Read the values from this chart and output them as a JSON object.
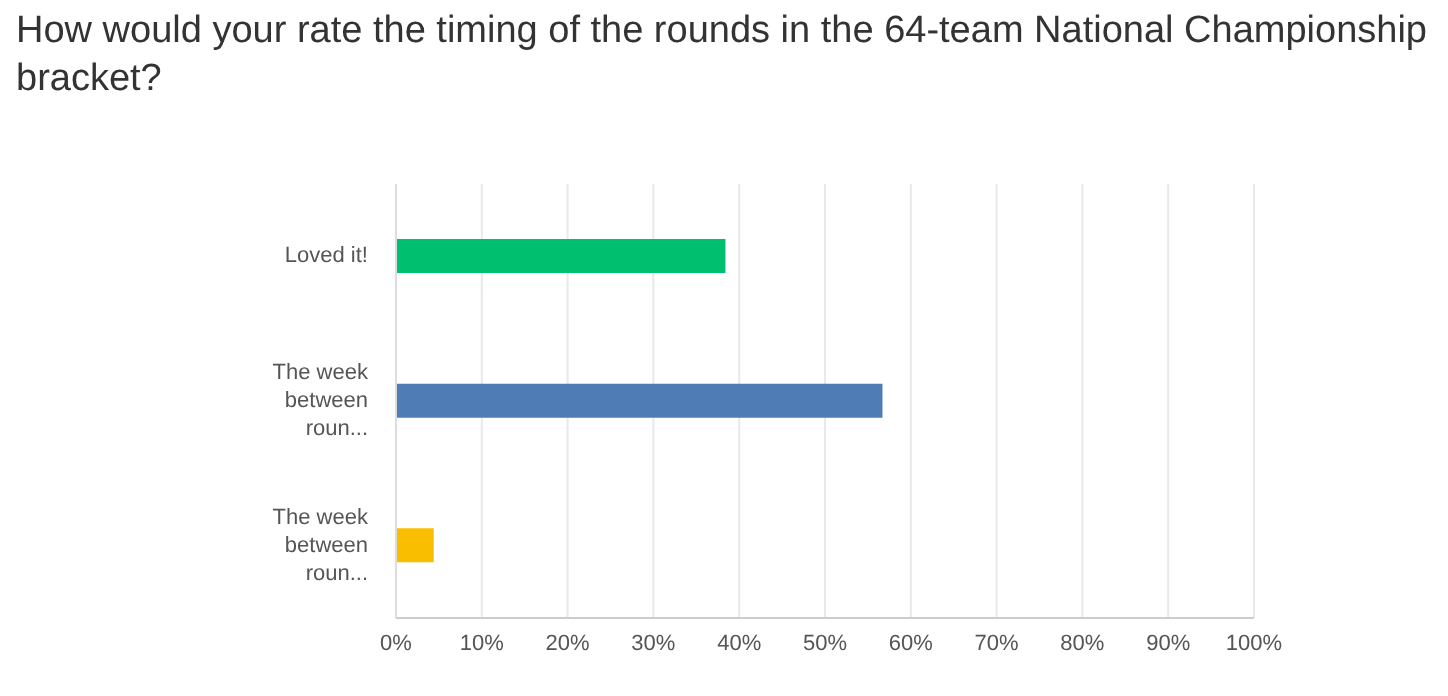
{
  "chart_data": {
    "type": "bar",
    "orientation": "horizontal",
    "title": "How would your rate the timing of the rounds in the 64-team National Championship bracket?",
    "categories": [
      "Loved it!",
      "The week between roun...",
      "The week between roun..."
    ],
    "values": [
      38.4,
      56.7,
      4.4
    ],
    "colors": [
      "#00bf6f",
      "#507cb6",
      "#f9be00"
    ],
    "xlim": [
      0,
      100
    ],
    "xticks": [
      {
        "value": 0,
        "label": "0%"
      },
      {
        "value": 10,
        "label": "10%"
      },
      {
        "value": 20,
        "label": "20%"
      },
      {
        "value": 30,
        "label": "30%"
      },
      {
        "value": 40,
        "label": "40%"
      },
      {
        "value": 50,
        "label": "50%"
      },
      {
        "value": 60,
        "label": "60%"
      },
      {
        "value": 70,
        "label": "70%"
      },
      {
        "value": 80,
        "label": "80%"
      },
      {
        "value": 90,
        "label": "90%"
      },
      {
        "value": 100,
        "label": "100%"
      }
    ],
    "grid": "x"
  }
}
